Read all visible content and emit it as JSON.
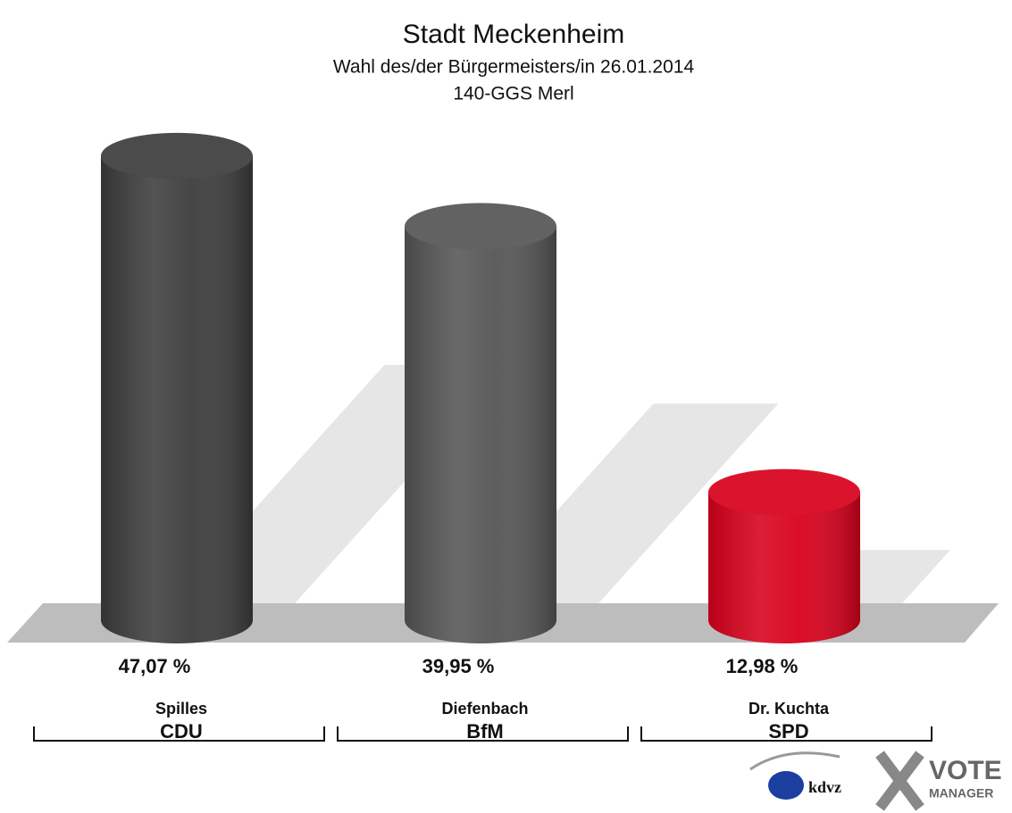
{
  "chart_data": {
    "type": "bar",
    "title": "Stadt Meckenheim",
    "subtitle": "Wahl des/der Bürgermeisters/in 26.01.2014",
    "subtitle2": "140-GGS Merl",
    "categories": [
      "Spilles",
      "Diefenbach",
      "Dr. Kuchta"
    ],
    "parties": [
      "CDU",
      "BfM",
      "SPD"
    ],
    "values": [
      47.07,
      39.95,
      12.98
    ],
    "value_labels": [
      "47,07 %",
      "39,95 %",
      "12,98 %"
    ],
    "colors": [
      "#3c3c3c",
      "#555555",
      "#d8001c"
    ],
    "logo_texts": [
      "kdvz",
      "VOTE",
      "MANAGER"
    ]
  }
}
